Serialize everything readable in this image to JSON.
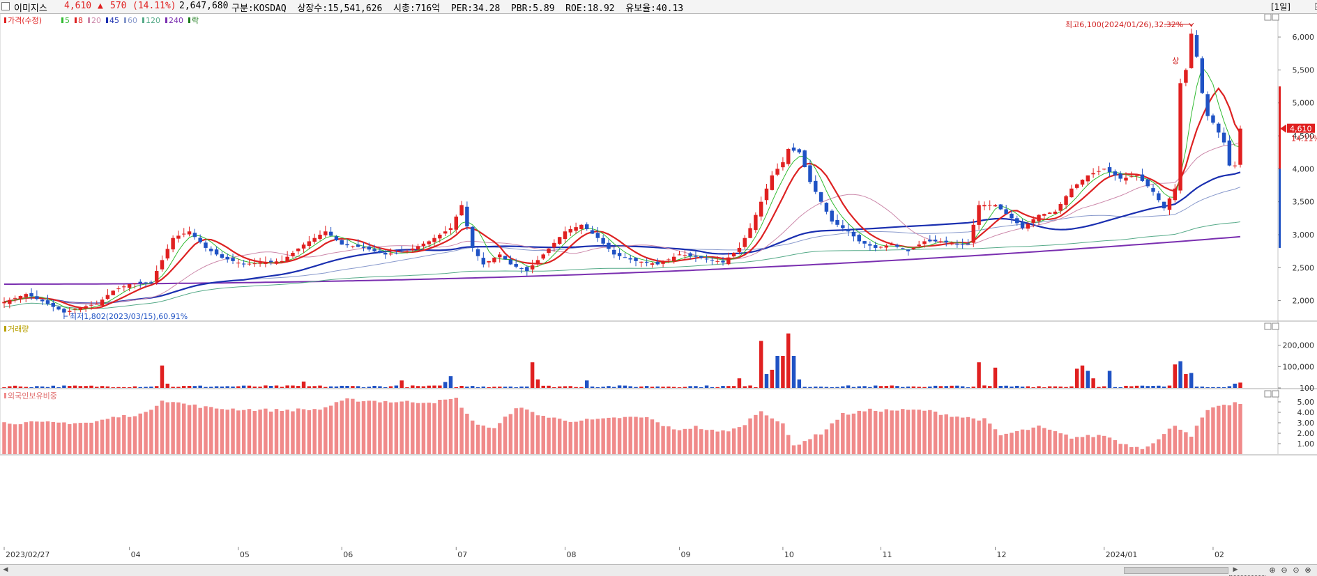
{
  "header": {
    "name": "이미지스",
    "price": "4,610",
    "change_arrow": "▲",
    "change": "570",
    "change_pct": "(14.11%)",
    "volume": "2,647,680",
    "info": "구분:KOSDAQ  상장수:15,541,626  시총:716억  PER:34.28  PBR:5.89  ROE:18.92  유보율:40.13",
    "period": "[1일]"
  },
  "legend": {
    "price_label": "가격(수정)",
    "ma": [
      {
        "label": "5",
        "color": "#33bb33"
      },
      {
        "label": "8",
        "color": "#dd2222"
      },
      {
        "label": "20",
        "color": "#cc88aa"
      },
      {
        "label": "45",
        "color": "#1a2fb0"
      },
      {
        "label": "60",
        "color": "#8899cc"
      },
      {
        "label": "120",
        "color": "#55aa88"
      },
      {
        "label": "240",
        "color": "#7a2fb0"
      }
    ],
    "extra": "락",
    "volume_label": "거래량",
    "foreign_label": "외국인보유비중"
  },
  "annotations": {
    "high": "최고6,100(2024/01/26),32.32%",
    "low": "최저1,802(2023/03/15),60.91%",
    "last_price": "4,610",
    "last_pct": "14.11%",
    "sang": "상"
  },
  "colors": {
    "up": "#e02020",
    "down": "#1f52c4",
    "foreign_bar": "#f08a8a",
    "grid": "#e8e8e8"
  },
  "chart_data": [
    {
      "type": "candlestick",
      "title": "가격(수정)",
      "yticks": [
        "6,000",
        "5,500",
        "5,000",
        "4,500",
        "4,000",
        "3,500",
        "3,000",
        "2,500",
        "2,000"
      ],
      "ylim": [
        1700,
        6350
      ],
      "xticks": [
        {
          "label": "2023/02/27",
          "index": 0
        },
        {
          "label": "04",
          "index": 23
        },
        {
          "label": "05",
          "index": 43
        },
        {
          "label": "06",
          "index": 62
        },
        {
          "label": "07",
          "index": 83
        },
        {
          "label": "08",
          "index": 103
        },
        {
          "label": "09",
          "index": 124
        },
        {
          "label": "10",
          "index": 143
        },
        {
          "label": "11",
          "index": 161
        },
        {
          "label": "12",
          "index": 182
        },
        {
          "label": "2024/01",
          "index": 202
        },
        {
          "label": "02",
          "index": 222
        }
      ],
      "keypoints": [
        [
          0,
          1980
        ],
        [
          4,
          2100
        ],
        [
          8,
          1950
        ],
        [
          11,
          1820
        ],
        [
          14,
          1900
        ],
        [
          17,
          1950
        ],
        [
          20,
          2150
        ],
        [
          23,
          2250
        ],
        [
          27,
          2280
        ],
        [
          31,
          2950
        ],
        [
          34,
          3050
        ],
        [
          37,
          2800
        ],
        [
          40,
          2650
        ],
        [
          44,
          2550
        ],
        [
          48,
          2580
        ],
        [
          51,
          2600
        ],
        [
          55,
          2850
        ],
        [
          59,
          3050
        ],
        [
          62,
          2850
        ],
        [
          66,
          2800
        ],
        [
          70,
          2700
        ],
        [
          74,
          2750
        ],
        [
          78,
          2900
        ],
        [
          82,
          3100
        ],
        [
          84,
          3450
        ],
        [
          86,
          2800
        ],
        [
          88,
          2550
        ],
        [
          91,
          2700
        ],
        [
          93,
          2550
        ],
        [
          96,
          2450
        ],
        [
          99,
          2700
        ],
        [
          103,
          3050
        ],
        [
          106,
          3150
        ],
        [
          109,
          2950
        ],
        [
          112,
          2700
        ],
        [
          116,
          2600
        ],
        [
          120,
          2550
        ],
        [
          124,
          2700
        ],
        [
          128,
          2650
        ],
        [
          132,
          2580
        ],
        [
          135,
          2800
        ],
        [
          137,
          3100
        ],
        [
          139,
          3500
        ],
        [
          141,
          3900
        ],
        [
          143,
          4100
        ],
        [
          144,
          4300
        ],
        [
          146,
          4250
        ],
        [
          148,
          3800
        ],
        [
          150,
          3500
        ],
        [
          152,
          3200
        ],
        [
          155,
          3050
        ],
        [
          157,
          2900
        ],
        [
          160,
          2800
        ],
        [
          163,
          2850
        ],
        [
          166,
          2750
        ],
        [
          169,
          2900
        ],
        [
          172,
          2900
        ],
        [
          175,
          2850
        ],
        [
          177,
          2850
        ],
        [
          179,
          3450
        ],
        [
          182,
          3450
        ],
        [
          185,
          3250
        ],
        [
          187,
          3100
        ],
        [
          190,
          3300
        ],
        [
          193,
          3350
        ],
        [
          196,
          3700
        ],
        [
          199,
          3900
        ],
        [
          202,
          4000
        ],
        [
          205,
          3850
        ],
        [
          208,
          3900
        ],
        [
          211,
          3650
        ],
        [
          213,
          3400
        ],
        [
          215,
          3700
        ],
        [
          216,
          5300
        ],
        [
          217,
          5500
        ],
        [
          218,
          6050
        ],
        [
          219,
          5700
        ],
        [
          220,
          5150
        ],
        [
          221,
          4800
        ],
        [
          222,
          4700
        ],
        [
          224,
          4400
        ],
        [
          225,
          4050
        ],
        [
          226,
          4050
        ],
        [
          227,
          4610
        ]
      ],
      "last": {
        "date": "2024/02/14",
        "value": 4610
      }
    },
    {
      "type": "bar",
      "title": "거래량",
      "yticks": [
        "200,000",
        "100,000",
        "100"
      ],
      "ylim": [
        0,
        290000
      ],
      "spikes": [
        [
          29,
          105000,
          "up"
        ],
        [
          30,
          20000,
          "up"
        ],
        [
          55,
          30000,
          "up"
        ],
        [
          73,
          35000,
          "up"
        ],
        [
          81,
          28000,
          "down"
        ],
        [
          82,
          55000,
          "down"
        ],
        [
          97,
          120000,
          "up"
        ],
        [
          98,
          40000,
          "up"
        ],
        [
          107,
          35000,
          "down"
        ],
        [
          135,
          45000,
          "up"
        ],
        [
          139,
          220000,
          "up"
        ],
        [
          140,
          65000,
          "down"
        ],
        [
          141,
          85000,
          "up"
        ],
        [
          142,
          150000,
          "down"
        ],
        [
          143,
          150000,
          "up"
        ],
        [
          144,
          255000,
          "up"
        ],
        [
          145,
          150000,
          "down"
        ],
        [
          146,
          40000,
          "down"
        ],
        [
          179,
          120000,
          "up"
        ],
        [
          182,
          95000,
          "up"
        ],
        [
          197,
          90000,
          "up"
        ],
        [
          198,
          105000,
          "up"
        ],
        [
          199,
          80000,
          "down"
        ],
        [
          200,
          45000,
          "up"
        ],
        [
          203,
          80000,
          "down"
        ],
        [
          215,
          110000,
          "up"
        ],
        [
          216,
          125000,
          "down"
        ],
        [
          217,
          65000,
          "up"
        ],
        [
          218,
          70000,
          "down"
        ],
        [
          226,
          20000,
          "down"
        ],
        [
          227,
          25000,
          "up"
        ]
      ]
    },
    {
      "type": "bar",
      "title": "외국인보유비중",
      "yticks": [
        "5.00",
        "4.00",
        "3.00",
        "2.00",
        "1.00"
      ],
      "ylim": [
        0,
        5.8
      ],
      "keypoints": [
        [
          0,
          3.0
        ],
        [
          10,
          3.0
        ],
        [
          16,
          3.0
        ],
        [
          20,
          3.5
        ],
        [
          26,
          3.9
        ],
        [
          29,
          5.2
        ],
        [
          33,
          4.8
        ],
        [
          38,
          4.4
        ],
        [
          43,
          4.3
        ],
        [
          50,
          4.2
        ],
        [
          58,
          4.3
        ],
        [
          63,
          5.2
        ],
        [
          72,
          5.0
        ],
        [
          79,
          5.0
        ],
        [
          83,
          5.3
        ],
        [
          86,
          3.1
        ],
        [
          90,
          2.4
        ],
        [
          94,
          4.5
        ],
        [
          100,
          3.5
        ],
        [
          104,
          3.2
        ],
        [
          110,
          3.3
        ],
        [
          113,
          3.5
        ],
        [
          118,
          3.5
        ],
        [
          123,
          2.3
        ],
        [
          127,
          2.6
        ],
        [
          131,
          2.1
        ],
        [
          135,
          2.5
        ],
        [
          139,
          4.2
        ],
        [
          143,
          2.8
        ],
        [
          145,
          0.8
        ],
        [
          150,
          2.0
        ],
        [
          154,
          3.8
        ],
        [
          159,
          4.2
        ],
        [
          165,
          4.2
        ],
        [
          169,
          4.2
        ],
        [
          175,
          3.6
        ],
        [
          180,
          3.3
        ],
        [
          183,
          1.8
        ],
        [
          190,
          2.6
        ],
        [
          196,
          1.6
        ],
        [
          202,
          1.8
        ],
        [
          206,
          0.9
        ],
        [
          209,
          0.6
        ],
        [
          212,
          1.4
        ],
        [
          215,
          2.8
        ],
        [
          218,
          1.8
        ],
        [
          221,
          4.2
        ],
        [
          226,
          4.9
        ],
        [
          227,
          4.8
        ]
      ]
    }
  ]
}
